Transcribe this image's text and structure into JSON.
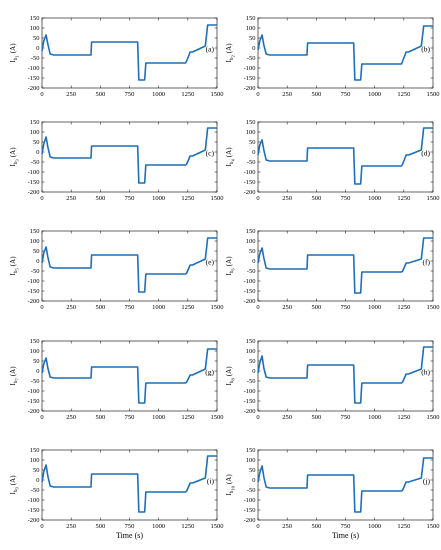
{
  "chart_data": [
    {
      "type": "line",
      "panel_label": "(a)",
      "ylabel": "I_{b_1} (A)",
      "ylabel_main": "I",
      "ylabel_sub": "b",
      "ylabel_subsub": "1",
      "ylabel_unit": "(A)",
      "xlabel": "",
      "xlim": [
        0,
        1500
      ],
      "ylim": [
        -200,
        150
      ],
      "xticks": [
        "0",
        "250",
        "500",
        "750",
        "1000",
        "1250",
        "1500"
      ],
      "yticks": [
        "150",
        "100",
        "50",
        "0",
        "-50",
        "-100",
        "-150",
        "-200"
      ],
      "grid": false,
      "series": [
        {
          "x": [
            0,
            15,
            35,
            50,
            70,
            100,
            420,
            425,
            820,
            830,
            880,
            890,
            1230,
            1240,
            1270,
            1290,
            1400,
            1420,
            1500
          ],
          "y": [
            -15,
            35,
            65,
            20,
            -30,
            -35,
            -35,
            30,
            30,
            -160,
            -160,
            -75,
            -75,
            -65,
            -20,
            -20,
            10,
            115,
            115
          ]
        }
      ]
    },
    {
      "type": "line",
      "panel_label": "(b)",
      "ylabel": "I_{b_2} (A)",
      "ylabel_main": "I",
      "ylabel_sub": "b",
      "ylabel_subsub": "2",
      "ylabel_unit": "(A)",
      "xlabel": "",
      "xlim": [
        0,
        1500
      ],
      "ylim": [
        -200,
        150
      ],
      "xticks": [
        "0",
        "250",
        "500",
        "750",
        "1000",
        "1250",
        "1500"
      ],
      "yticks": [
        "150",
        "100",
        "50",
        "0",
        "-50",
        "-100",
        "-150",
        "-200"
      ],
      "grid": false,
      "series": [
        {
          "x": [
            0,
            15,
            35,
            50,
            70,
            100,
            420,
            425,
            820,
            830,
            880,
            890,
            1230,
            1240,
            1270,
            1290,
            1400,
            1420,
            1500
          ],
          "y": [
            -10,
            35,
            65,
            15,
            -30,
            -35,
            -35,
            25,
            25,
            -160,
            -160,
            -80,
            -80,
            -65,
            -20,
            -20,
            10,
            110,
            110
          ]
        }
      ]
    },
    {
      "type": "line",
      "panel_label": "(c)",
      "ylabel": "I_{b_3} (A)",
      "ylabel_main": "I",
      "ylabel_sub": "b",
      "ylabel_subsub": "3",
      "ylabel_unit": "(A)",
      "xlabel": "",
      "xlim": [
        0,
        1500
      ],
      "ylim": [
        -200,
        150
      ],
      "xticks": [
        "0",
        "250",
        "500",
        "750",
        "1000",
        "1250",
        "1500"
      ],
      "yticks": [
        "150",
        "100",
        "50",
        "0",
        "-50",
        "-100",
        "-150",
        "-200"
      ],
      "grid": false,
      "series": [
        {
          "x": [
            0,
            15,
            35,
            50,
            70,
            100,
            420,
            425,
            820,
            830,
            880,
            890,
            1230,
            1240,
            1270,
            1290,
            1400,
            1420,
            1500
          ],
          "y": [
            -10,
            40,
            75,
            25,
            -25,
            -30,
            -30,
            30,
            30,
            -155,
            -155,
            -65,
            -65,
            -60,
            -20,
            -20,
            10,
            120,
            120
          ]
        }
      ]
    },
    {
      "type": "line",
      "panel_label": "(d)",
      "ylabel": "I_{b_4} (A)",
      "ylabel_main": "I",
      "ylabel_sub": "b",
      "ylabel_subsub": "4",
      "ylabel_unit": "(A)",
      "xlabel": "",
      "xlim": [
        0,
        1500
      ],
      "ylim": [
        -200,
        150
      ],
      "xticks": [
        "0",
        "250",
        "500",
        "750",
        "1000",
        "1250",
        "1500"
      ],
      "yticks": [
        "150",
        "100",
        "50",
        "0",
        "-50",
        "-100",
        "-150",
        "-200"
      ],
      "grid": false,
      "series": [
        {
          "x": [
            0,
            15,
            35,
            50,
            70,
            100,
            420,
            425,
            820,
            830,
            880,
            890,
            1230,
            1240,
            1270,
            1290,
            1400,
            1420,
            1500
          ],
          "y": [
            -15,
            35,
            60,
            10,
            -40,
            -45,
            -45,
            20,
            20,
            -160,
            -160,
            -70,
            -70,
            -60,
            -15,
            -15,
            10,
            120,
            120
          ]
        }
      ]
    },
    {
      "type": "line",
      "panel_label": "(e)",
      "ylabel": "I_{b_5} (A)",
      "ylabel_main": "I",
      "ylabel_sub": "b",
      "ylabel_subsub": "5",
      "ylabel_unit": "(A)",
      "xlabel": "",
      "xlim": [
        0,
        1500
      ],
      "ylim": [
        -200,
        150
      ],
      "xticks": [
        "0",
        "250",
        "500",
        "750",
        "1000",
        "1250",
        "1500"
      ],
      "yticks": [
        "150",
        "100",
        "50",
        "0",
        "-50",
        "-100",
        "-150",
        "-200"
      ],
      "grid": false,
      "series": [
        {
          "x": [
            0,
            15,
            35,
            50,
            70,
            100,
            420,
            425,
            820,
            830,
            880,
            890,
            1230,
            1240,
            1270,
            1290,
            1400,
            1420,
            1500
          ],
          "y": [
            -10,
            40,
            70,
            20,
            -30,
            -35,
            -35,
            30,
            30,
            -155,
            -155,
            -65,
            -65,
            -60,
            -20,
            -20,
            10,
            115,
            115
          ]
        }
      ]
    },
    {
      "type": "line",
      "panel_label": "(f)",
      "ylabel": "I_{b_6} (A)",
      "ylabel_main": "I",
      "ylabel_sub": "b",
      "ylabel_subsub": "6",
      "ylabel_unit": "(A)",
      "xlabel": "",
      "xlim": [
        0,
        1500
      ],
      "ylim": [
        -200,
        150
      ],
      "xticks": [
        "0",
        "250",
        "500",
        "750",
        "1000",
        "1250",
        "1500"
      ],
      "yticks": [
        "150",
        "100",
        "50",
        "0",
        "-50",
        "-100",
        "-150",
        "-200"
      ],
      "grid": false,
      "series": [
        {
          "x": [
            0,
            15,
            35,
            50,
            70,
            100,
            420,
            425,
            820,
            830,
            880,
            890,
            1230,
            1240,
            1270,
            1290,
            1400,
            1420,
            1500
          ],
          "y": [
            -10,
            35,
            65,
            15,
            -35,
            -40,
            -40,
            30,
            30,
            -160,
            -160,
            -55,
            -55,
            -50,
            -10,
            -10,
            10,
            115,
            115
          ]
        }
      ]
    },
    {
      "type": "line",
      "panel_label": "(g)",
      "ylabel": "I_{b_7} (A)",
      "ylabel_main": "I",
      "ylabel_sub": "b",
      "ylabel_subsub": "7",
      "ylabel_unit": "(A)",
      "xlabel": "",
      "xlim": [
        0,
        1500
      ],
      "ylim": [
        -200,
        150
      ],
      "xticks": [
        "0",
        "250",
        "500",
        "750",
        "1000",
        "1250",
        "1500"
      ],
      "yticks": [
        "150",
        "100",
        "50",
        "0",
        "-50",
        "-100",
        "-150",
        "-200"
      ],
      "grid": false,
      "series": [
        {
          "x": [
            0,
            15,
            35,
            50,
            70,
            100,
            420,
            425,
            820,
            830,
            880,
            890,
            1230,
            1240,
            1270,
            1290,
            1400,
            1420,
            1500
          ],
          "y": [
            -10,
            35,
            65,
            15,
            -30,
            -35,
            -35,
            20,
            20,
            -160,
            -160,
            -60,
            -60,
            -55,
            -20,
            -20,
            10,
            110,
            110
          ]
        }
      ]
    },
    {
      "type": "line",
      "panel_label": "(h)",
      "ylabel": "I_{b_8} (A)",
      "ylabel_main": "I",
      "ylabel_sub": "b",
      "ylabel_subsub": "8",
      "ylabel_unit": "(A)",
      "xlabel": "",
      "xlim": [
        0,
        1500
      ],
      "ylim": [
        -200,
        150
      ],
      "xticks": [
        "0",
        "250",
        "500",
        "750",
        "1000",
        "1250",
        "1500"
      ],
      "yticks": [
        "150",
        "100",
        "50",
        "0",
        "-50",
        "-100",
        "-150",
        "-200"
      ],
      "grid": false,
      "series": [
        {
          "x": [
            0,
            15,
            35,
            50,
            70,
            100,
            420,
            425,
            820,
            830,
            880,
            890,
            1230,
            1240,
            1270,
            1290,
            1400,
            1420,
            1500
          ],
          "y": [
            -10,
            40,
            75,
            15,
            -30,
            -35,
            -35,
            30,
            30,
            -160,
            -160,
            -60,
            -60,
            -55,
            -15,
            -15,
            10,
            120,
            120
          ]
        }
      ]
    },
    {
      "type": "line",
      "panel_label": "(i)",
      "ylabel": "I_{b_9} (A)",
      "ylabel_main": "I",
      "ylabel_sub": "b",
      "ylabel_subsub": "9",
      "ylabel_unit": "(A)",
      "xlabel": "Time (s)",
      "xlim": [
        0,
        1500
      ],
      "ylim": [
        -200,
        150
      ],
      "xticks": [
        "0",
        "250",
        "500",
        "750",
        "1000",
        "1250",
        "1500"
      ],
      "yticks": [
        "150",
        "100",
        "50",
        "0",
        "-50",
        "-100",
        "-150",
        "-200"
      ],
      "grid": false,
      "series": [
        {
          "x": [
            0,
            15,
            35,
            50,
            70,
            100,
            420,
            425,
            820,
            830,
            880,
            890,
            1230,
            1240,
            1270,
            1290,
            1400,
            1420,
            1500
          ],
          "y": [
            -10,
            40,
            75,
            20,
            -30,
            -35,
            -35,
            30,
            30,
            -160,
            -160,
            -60,
            -60,
            -55,
            -15,
            -15,
            10,
            120,
            120
          ]
        }
      ]
    },
    {
      "type": "line",
      "panel_label": "(j)",
      "ylabel": "I_{b_{10}} (A)",
      "ylabel_main": "I",
      "ylabel_sub": "b",
      "ylabel_subsub": "10",
      "ylabel_unit": "(A)",
      "xlabel": "Time (s)",
      "xlim": [
        0,
        1500
      ],
      "ylim": [
        -200,
        150
      ],
      "xticks": [
        "0",
        "250",
        "500",
        "750",
        "1000",
        "1250",
        "1500"
      ],
      "yticks": [
        "150",
        "100",
        "50",
        "0",
        "-50",
        "-100",
        "-150",
        "-200"
      ],
      "grid": false,
      "series": [
        {
          "x": [
            0,
            15,
            35,
            50,
            70,
            100,
            420,
            425,
            820,
            830,
            880,
            890,
            1230,
            1240,
            1270,
            1290,
            1400,
            1420,
            1500
          ],
          "y": [
            -10,
            35,
            70,
            15,
            -35,
            -40,
            -40,
            25,
            25,
            -160,
            -160,
            -55,
            -55,
            -50,
            -10,
            -10,
            10,
            110,
            110
          ]
        }
      ]
    }
  ],
  "colors": {
    "line": "#1f6eb8",
    "axis": "#000000"
  }
}
